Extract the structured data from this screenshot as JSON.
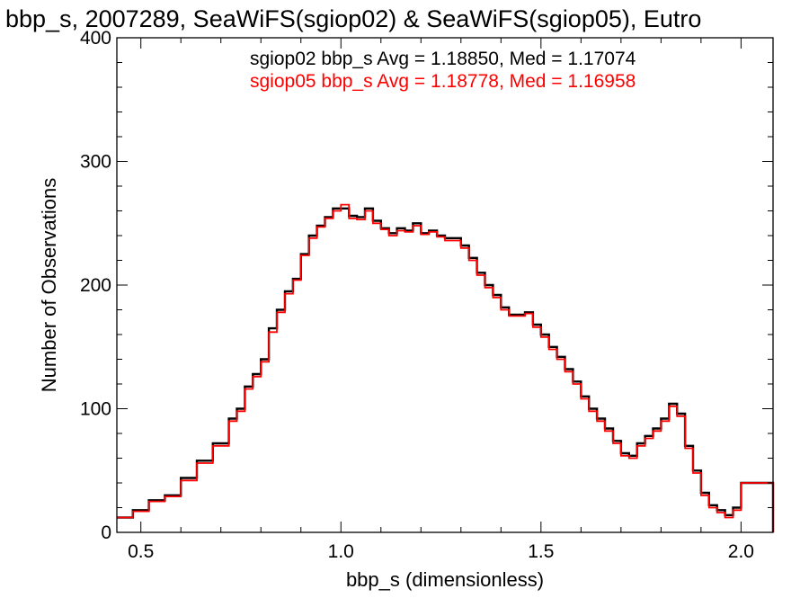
{
  "chart_data": {
    "type": "line",
    "title": "bbp_s, 2007289, SeaWiFS(sgiop02) & SeaWiFS(sgiop05), Eutro",
    "xlabel": "bbp_s (dimensionless)",
    "ylabel": "Number of Observations",
    "xlim": [
      0.44,
      2.08
    ],
    "ylim": [
      0,
      400
    ],
    "xticks": [
      0.5,
      1.0,
      1.5,
      2.0
    ],
    "xtick_labels": [
      "0.5",
      "1.0",
      "1.5",
      "2.0"
    ],
    "yticks": [
      0,
      100,
      200,
      300,
      400
    ],
    "ytick_labels": [
      "0",
      "100",
      "200",
      "300",
      "400"
    ],
    "grid": false,
    "series": [
      {
        "name": "sgiop02",
        "color": "#000000",
        "annotation": "sgiop02 bbp_s Avg = 1.18850, Med = 1.17074",
        "x": [
          0.44,
          0.48,
          0.52,
          0.56,
          0.6,
          0.64,
          0.68,
          0.72,
          0.74,
          0.76,
          0.78,
          0.8,
          0.82,
          0.84,
          0.86,
          0.88,
          0.9,
          0.92,
          0.94,
          0.96,
          0.98,
          1.0,
          1.02,
          1.04,
          1.06,
          1.08,
          1.1,
          1.12,
          1.14,
          1.16,
          1.18,
          1.2,
          1.22,
          1.24,
          1.26,
          1.28,
          1.3,
          1.32,
          1.34,
          1.36,
          1.38,
          1.4,
          1.42,
          1.44,
          1.46,
          1.48,
          1.5,
          1.52,
          1.54,
          1.56,
          1.58,
          1.6,
          1.62,
          1.64,
          1.66,
          1.68,
          1.7,
          1.72,
          1.74,
          1.76,
          1.78,
          1.8,
          1.82,
          1.84,
          1.86,
          1.88,
          1.9,
          1.92,
          1.94,
          1.96,
          1.98,
          2.0,
          2.08
        ],
        "y": [
          12,
          18,
          26,
          30,
          44,
          58,
          72,
          92,
          100,
          118,
          128,
          140,
          165,
          180,
          195,
          205,
          225,
          240,
          248,
          255,
          262,
          262,
          256,
          255,
          262,
          252,
          246,
          242,
          246,
          244,
          250,
          242,
          244,
          240,
          238,
          238,
          232,
          222,
          210,
          200,
          192,
          182,
          176,
          176,
          178,
          168,
          160,
          150,
          142,
          132,
          122,
          110,
          100,
          92,
          84,
          74,
          64,
          62,
          72,
          78,
          84,
          92,
          104,
          96,
          70,
          50,
          32,
          22,
          18,
          14,
          20,
          40,
          0
        ]
      },
      {
        "name": "sgiop05",
        "color": "#ff0000",
        "annotation": "sgiop05 bbp_s Avg = 1.18778, Med = 1.16958",
        "x": [
          0.44,
          0.48,
          0.52,
          0.56,
          0.6,
          0.64,
          0.68,
          0.72,
          0.74,
          0.76,
          0.78,
          0.8,
          0.82,
          0.84,
          0.86,
          0.88,
          0.9,
          0.92,
          0.94,
          0.96,
          0.98,
          1.0,
          1.02,
          1.04,
          1.06,
          1.08,
          1.1,
          1.12,
          1.14,
          1.16,
          1.18,
          1.2,
          1.22,
          1.24,
          1.26,
          1.28,
          1.3,
          1.32,
          1.34,
          1.36,
          1.38,
          1.4,
          1.42,
          1.44,
          1.46,
          1.48,
          1.5,
          1.52,
          1.54,
          1.56,
          1.58,
          1.6,
          1.62,
          1.64,
          1.66,
          1.68,
          1.7,
          1.72,
          1.74,
          1.76,
          1.78,
          1.8,
          1.82,
          1.84,
          1.86,
          1.88,
          1.9,
          1.92,
          1.94,
          1.96,
          1.98,
          2.0,
          2.08
        ],
        "y": [
          12,
          17,
          25,
          29,
          42,
          56,
          70,
          90,
          98,
          116,
          126,
          138,
          162,
          178,
          193,
          204,
          224,
          238,
          247,
          254,
          260,
          265,
          254,
          253,
          260,
          250,
          245,
          240,
          244,
          243,
          248,
          241,
          243,
          239,
          236,
          236,
          230,
          220,
          208,
          198,
          190,
          180,
          175,
          175,
          177,
          166,
          158,
          148,
          140,
          130,
          120,
          108,
          98,
          90,
          82,
          72,
          62,
          60,
          70,
          76,
          82,
          90,
          102,
          94,
          68,
          48,
          30,
          20,
          16,
          12,
          18,
          40,
          0
        ]
      }
    ]
  }
}
